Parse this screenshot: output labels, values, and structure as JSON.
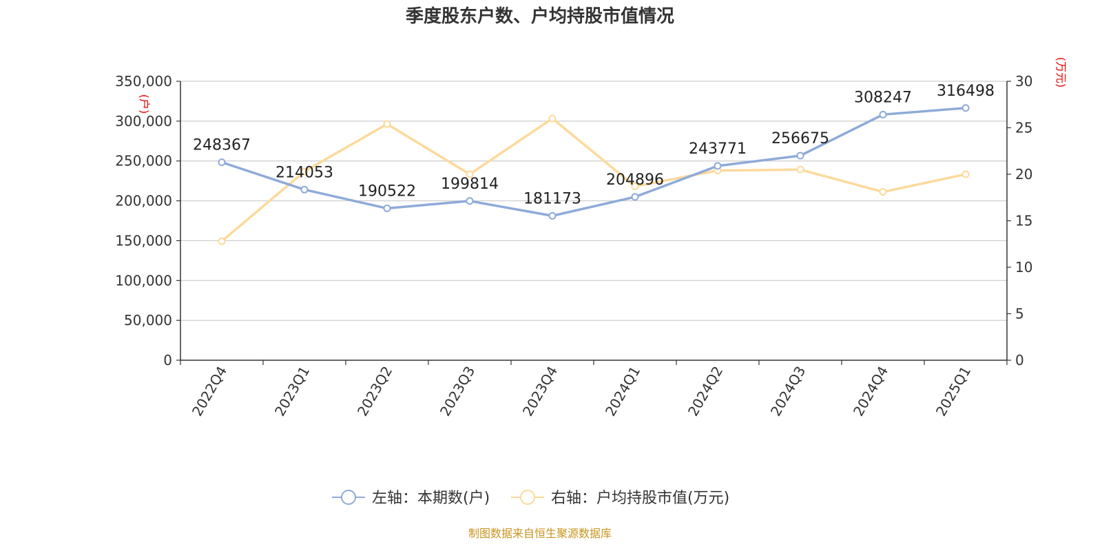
{
  "chart_data": {
    "type": "line",
    "title": "季度股东户数、户均持股市值情况",
    "categories": [
      "2022Q4",
      "2023Q1",
      "2023Q2",
      "2023Q3",
      "2023Q4",
      "2024Q1",
      "2024Q2",
      "2024Q3",
      "2024Q4",
      "2025Q1"
    ],
    "left_axis": {
      "unit": "(户)",
      "range": [
        0,
        350000
      ],
      "ticks": [
        "0",
        "50,000",
        "100,000",
        "150,000",
        "200,000",
        "250,000",
        "300,000",
        "350,000"
      ]
    },
    "right_axis": {
      "unit": "(万元)",
      "range": [
        0,
        30
      ],
      "ticks": [
        "0",
        "5",
        "10",
        "15",
        "20",
        "25",
        "30"
      ]
    },
    "grid": true,
    "legend_position": "bottom",
    "series": [
      {
        "name": "左轴：本期数(户)",
        "axis": "left",
        "color": "#8eaad8",
        "values": [
          248367,
          214053,
          190522,
          199814,
          181173,
          204896,
          243771,
          256675,
          308247,
          316498
        ],
        "labels": [
          "248367",
          "214053",
          "190522",
          "199814",
          "181173",
          "204896",
          "243771",
          "256675",
          "308247",
          "316498"
        ]
      },
      {
        "name": "右轴：户均持股市值(万元)",
        "axis": "right",
        "color": "#fdd99b",
        "values": [
          12.8,
          20.3,
          25.4,
          20.0,
          26.0,
          18.7,
          20.4,
          20.5,
          18.1,
          20.0
        ]
      }
    ],
    "source": "制图数据来自恒生聚源数据库"
  }
}
